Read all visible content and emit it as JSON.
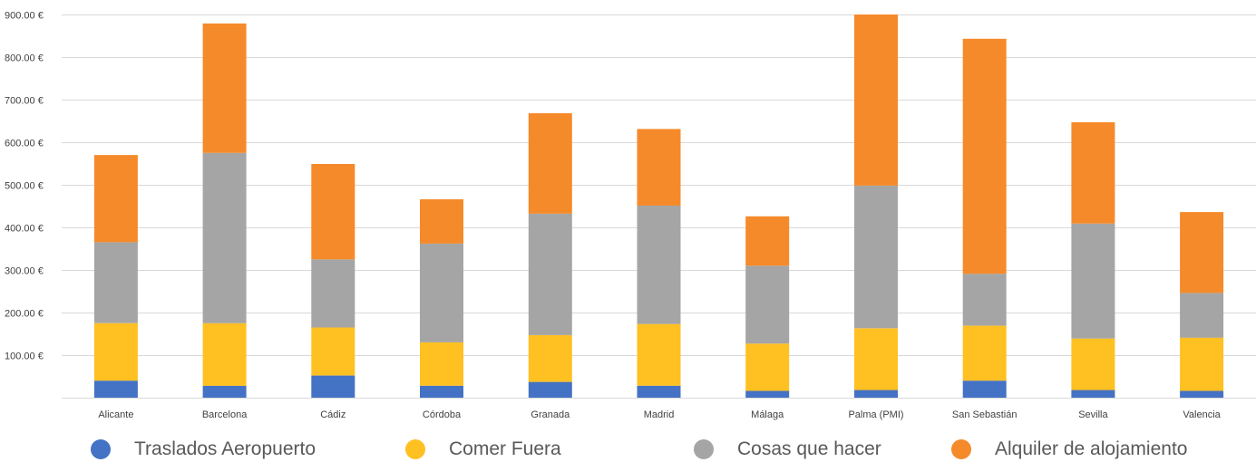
{
  "chart_data": {
    "type": "bar",
    "stacked": true,
    "categories": [
      "Alicante",
      "Barcelona",
      "Cádiz",
      "Córdoba",
      "Granada",
      "Madrid",
      "Málaga",
      "Palma (PMI)",
      "San Sebastián",
      "Sevilla",
      "Valencia"
    ],
    "series": [
      {
        "name": "Traslados Aeropuerto",
        "color": "#4472C4",
        "values": [
          40,
          28,
          52,
          28,
          37,
          28,
          16,
          18,
          40,
          18,
          16
        ]
      },
      {
        "name": "Comer Fuera",
        "color": "#FFC022",
        "values": [
          135,
          147,
          113,
          102,
          110,
          145,
          111,
          145,
          129,
          121,
          125
        ]
      },
      {
        "name": "Cosas que hacer",
        "color": "#A5A5A5",
        "values": [
          190,
          400,
          160,
          232,
          285,
          278,
          183,
          335,
          122,
          270,
          105
        ]
      },
      {
        "name": "Alquiler de alojamiento",
        "color": "#F58A2A",
        "values": [
          205,
          304,
          224,
          104,
          236,
          180,
          116,
          402,
          552,
          238,
          190
        ]
      }
    ],
    "ylim": [
      0,
      900
    ],
    "yticks": [
      900,
      800,
      700,
      600,
      500,
      400,
      300,
      200,
      100
    ],
    "ytick_labels": [
      "900.00 €",
      "800.00 €",
      "700.00 €",
      "600.00 €",
      "500.00 €",
      "400.00 €",
      "300.00 €",
      "200.00 €",
      "100.00 €"
    ],
    "grid": true,
    "legend_position": "bottom",
    "title": "",
    "xlabel": "",
    "ylabel": ""
  }
}
